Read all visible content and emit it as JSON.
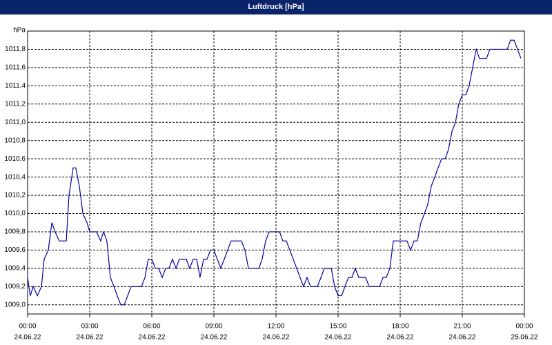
{
  "chart_data": {
    "type": "line",
    "title": "Luftdruck [hPa]",
    "y_label": "hPa",
    "x": [
      0,
      0.13,
      0.27,
      0.47,
      0.67,
      0.8,
      1.0,
      1.17,
      1.33,
      1.53,
      1.87,
      2.0,
      2.2,
      2.33,
      2.5,
      2.67,
      2.87,
      3.0,
      3.33,
      3.53,
      3.67,
      3.83,
      4.0,
      4.17,
      4.33,
      4.5,
      4.67,
      5.0,
      5.5,
      5.67,
      5.83,
      6.0,
      6.17,
      6.33,
      6.5,
      6.67,
      6.83,
      7.0,
      7.17,
      7.33,
      7.67,
      7.83,
      8.0,
      8.17,
      8.33,
      8.5,
      8.67,
      8.83,
      9.0,
      9.33,
      9.5,
      9.83,
      10.33,
      10.5,
      10.67,
      11.17,
      11.33,
      11.5,
      11.67,
      12.17,
      12.33,
      12.5,
      13.33,
      13.5,
      13.67,
      14.0,
      14.17,
      14.33,
      14.67,
      14.83,
      15.0,
      15.17,
      15.33,
      15.5,
      15.67,
      15.83,
      16.0,
      16.33,
      16.5,
      17.0,
      17.17,
      17.33,
      17.5,
      17.67,
      18.33,
      18.5,
      18.67,
      18.83,
      19.0,
      19.17,
      19.33,
      19.5,
      19.67,
      19.83,
      20.0,
      20.17,
      20.33,
      20.5,
      20.67,
      20.83,
      21.0,
      21.17,
      21.33,
      21.5,
      21.67,
      21.83,
      22.17,
      22.33,
      23.17,
      23.33,
      23.5,
      23.67,
      23.83
    ],
    "series": [
      {
        "name": "Luftdruck",
        "color": "#0000a0",
        "values": [
          1009.3,
          1009.1,
          1009.2,
          1009.1,
          1009.2,
          1009.5,
          1009.6,
          1009.9,
          1009.8,
          1009.7,
          1009.7,
          1010.2,
          1010.5,
          1010.5,
          1010.3,
          1010.0,
          1009.9,
          1009.8,
          1009.8,
          1009.7,
          1009.8,
          1009.7,
          1009.3,
          1009.2,
          1009.1,
          1009.0,
          1009.0,
          1009.2,
          1009.2,
          1009.3,
          1009.5,
          1009.5,
          1009.4,
          1009.4,
          1009.3,
          1009.4,
          1009.4,
          1009.5,
          1009.4,
          1009.5,
          1009.5,
          1009.4,
          1009.5,
          1009.5,
          1009.3,
          1009.5,
          1009.5,
          1009.6,
          1009.6,
          1009.4,
          1009.5,
          1009.7,
          1009.7,
          1009.6,
          1009.4,
          1009.4,
          1009.5,
          1009.7,
          1009.8,
          1009.8,
          1009.7,
          1009.7,
          1009.2,
          1009.3,
          1009.2,
          1009.2,
          1009.3,
          1009.4,
          1009.4,
          1009.2,
          1009.1,
          1009.1,
          1009.2,
          1009.3,
          1009.3,
          1009.4,
          1009.3,
          1009.3,
          1009.2,
          1009.2,
          1009.3,
          1009.3,
          1009.4,
          1009.7,
          1009.7,
          1009.6,
          1009.7,
          1009.7,
          1009.9,
          1010.0,
          1010.1,
          1010.3,
          1010.4,
          1010.5,
          1010.6,
          1010.6,
          1010.7,
          1010.9,
          1011.0,
          1011.2,
          1011.3,
          1011.3,
          1011.4,
          1011.6,
          1011.8,
          1011.7,
          1011.7,
          1011.8,
          1011.8,
          1011.9,
          1011.9,
          1011.8,
          1011.7
        ]
      }
    ],
    "xlim": [
      0,
      24
    ],
    "xticks": [
      {
        "value": 0,
        "label": "00:00"
      },
      {
        "value": 3,
        "label": "03:00"
      },
      {
        "value": 6,
        "label": "06:00"
      },
      {
        "value": 9,
        "label": "09:00"
      },
      {
        "value": 12,
        "label": "12:00"
      },
      {
        "value": 15,
        "label": "15:00"
      },
      {
        "value": 18,
        "label": "18:00"
      },
      {
        "value": 21,
        "label": "21:00"
      },
      {
        "value": 24,
        "label": "00:00"
      }
    ],
    "xtick_dates": [
      "24.06.22",
      "24.06.22",
      "24.06.22",
      "24.06.22",
      "24.06.22",
      "24.06.22",
      "24.06.22",
      "24.06.22",
      "25.06.22"
    ],
    "ylim": [
      1008.9,
      1012.0
    ],
    "yticks": [
      {
        "value": 1009.0,
        "label": "1009,0"
      },
      {
        "value": 1009.2,
        "label": "1009,2"
      },
      {
        "value": 1009.4,
        "label": "1009,4"
      },
      {
        "value": 1009.6,
        "label": "1009,6"
      },
      {
        "value": 1009.8,
        "label": "1009,8"
      },
      {
        "value": 1010.0,
        "label": "1010,0"
      },
      {
        "value": 1010.2,
        "label": "1010,2"
      },
      {
        "value": 1010.4,
        "label": "1010,4"
      },
      {
        "value": 1010.6,
        "label": "1010,6"
      },
      {
        "value": 1010.8,
        "label": "1010,8"
      },
      {
        "value": 1011.0,
        "label": "1011,0"
      },
      {
        "value": 1011.2,
        "label": "1011,2"
      },
      {
        "value": 1011.4,
        "label": "1011,4"
      },
      {
        "value": 1011.6,
        "label": "1011,6"
      },
      {
        "value": 1011.8,
        "label": "1011,8"
      }
    ],
    "grid": true
  }
}
